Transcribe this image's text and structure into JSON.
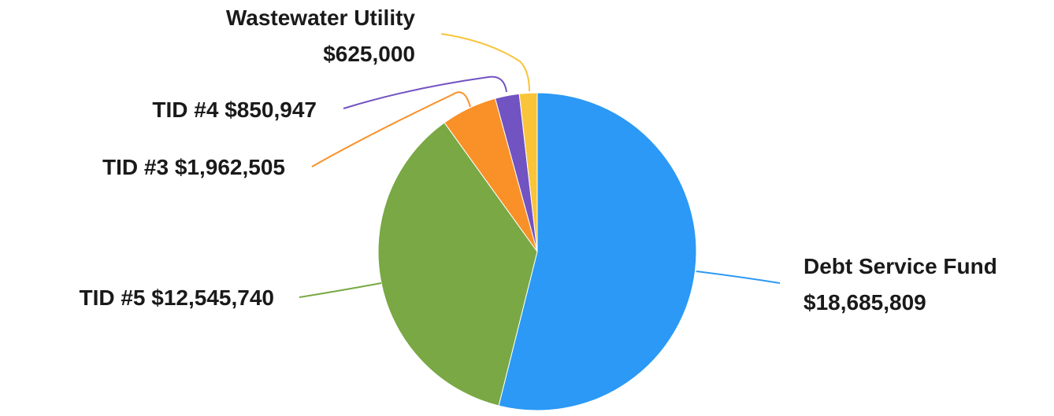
{
  "chart_data": {
    "type": "pie",
    "categories": [
      "Debt Service Fund",
      "TID #5",
      "TID #3",
      "TID #4",
      "Wastewater Utility"
    ],
    "values": [
      18685809,
      12545740,
      1962505,
      850947,
      625000
    ],
    "value_labels": [
      "$18,685,809",
      "$12,545,740",
      "$1,962,505",
      "$850,947",
      "$625,000"
    ],
    "colors": [
      "#2b99f5",
      "#79a844",
      "#f99128",
      "#7153c1",
      "#f9c43a"
    ]
  }
}
